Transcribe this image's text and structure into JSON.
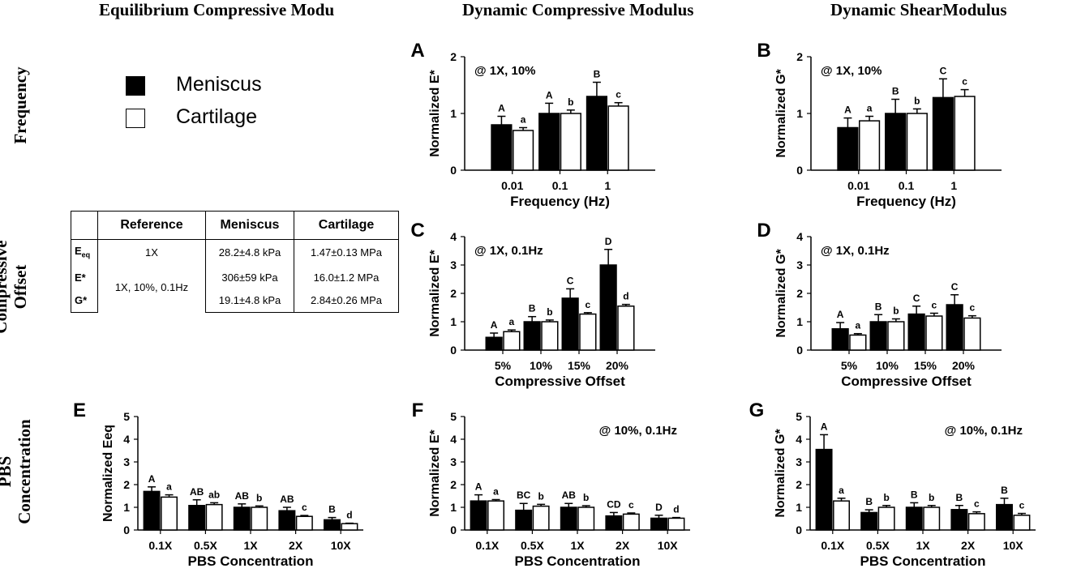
{
  "column_headers": [
    "Equilibrium Compressive Modu",
    "Dynamic Compressive Modulus",
    "Dynamic ShearModulus"
  ],
  "row_headers": {
    "frequency": [
      "Frequency"
    ],
    "offset": [
      "Compressive",
      "Offset"
    ],
    "pbs": [
      "PBS",
      "Concentration"
    ]
  },
  "legend": [
    {
      "label": "Meniscus",
      "color": "#000000"
    },
    {
      "label": "Cartilage",
      "color": "#ffffff"
    }
  ],
  "reference_table": {
    "headers": [
      "",
      "Reference",
      "Meniscus",
      "Cartilage"
    ],
    "row_labels": [
      {
        "main": "E",
        "sub": "eq"
      },
      {
        "main": "E*",
        "sub": ""
      },
      {
        "main": "G*",
        "sub": ""
      }
    ],
    "reference_values": [
      "1X",
      "1X, 10%, 0.1Hz"
    ],
    "meniscus": [
      "28.2±4.8 kPa",
      "306±59 kPa",
      "19.1±4.8 kPa"
    ],
    "cartilage": [
      "1.47±0.13 MPa",
      "16.0±1.2 MPa",
      "2.84±0.26 MPa"
    ]
  },
  "chart_data": [
    {
      "id": "A",
      "type": "bar",
      "condition": "@ 1X, 10%",
      "xlabel": "Frequency (Hz)",
      "ylabel": "Normalized E*",
      "ylim": [
        0,
        2
      ],
      "yticks": [
        0,
        1,
        2
      ],
      "categories": [
        "0.01",
        "0.1",
        "1"
      ],
      "series": [
        {
          "name": "Meniscus",
          "values": [
            0.8,
            1.0,
            1.3
          ],
          "errors": [
            0.15,
            0.18,
            0.25
          ],
          "letters": [
            "A",
            "A",
            "B"
          ]
        },
        {
          "name": "Cartilage",
          "values": [
            0.7,
            1.0,
            1.13
          ],
          "errors": [
            0.05,
            0.06,
            0.06
          ],
          "letters": [
            "a",
            "b",
            "c"
          ]
        }
      ]
    },
    {
      "id": "B",
      "type": "bar",
      "condition": "@ 1X, 10%",
      "xlabel": "Frequency (Hz)",
      "ylabel": "Normalized G*",
      "ylim": [
        0,
        2
      ],
      "yticks": [
        0,
        1,
        2
      ],
      "categories": [
        "0.01",
        "0.1",
        "1"
      ],
      "series": [
        {
          "name": "Meniscus",
          "values": [
            0.75,
            1.0,
            1.28
          ],
          "errors": [
            0.17,
            0.25,
            0.33
          ],
          "letters": [
            "A",
            "B",
            "C"
          ]
        },
        {
          "name": "Cartilage",
          "values": [
            0.87,
            1.0,
            1.3
          ],
          "errors": [
            0.08,
            0.08,
            0.12
          ],
          "letters": [
            "a",
            "b",
            "c"
          ]
        }
      ]
    },
    {
      "id": "C",
      "type": "bar",
      "condition": "@ 1X, 0.1Hz",
      "xlabel": "Compressive Offset",
      "ylabel": "Normalized E*",
      "ylim": [
        0,
        4
      ],
      "yticks": [
        0,
        1,
        2,
        3,
        4
      ],
      "categories": [
        "5%",
        "10%",
        "15%",
        "20%"
      ],
      "series": [
        {
          "name": "Meniscus",
          "values": [
            0.45,
            1.0,
            1.83,
            3.0
          ],
          "errors": [
            0.15,
            0.18,
            0.33,
            0.55
          ],
          "letters": [
            "A",
            "B",
            "C",
            "D"
          ]
        },
        {
          "name": "Cartilage",
          "values": [
            0.65,
            1.0,
            1.27,
            1.55
          ],
          "errors": [
            0.06,
            0.06,
            0.05,
            0.06
          ],
          "letters": [
            "a",
            "b",
            "c",
            "d"
          ]
        }
      ]
    },
    {
      "id": "D",
      "type": "bar",
      "condition": "@ 1X, 0.1Hz",
      "xlabel": "Compressive Offset",
      "ylabel": "Normalized G*",
      "ylim": [
        0,
        4
      ],
      "yticks": [
        0,
        1,
        2,
        3,
        4
      ],
      "categories": [
        "5%",
        "10%",
        "15%",
        "20%"
      ],
      "series": [
        {
          "name": "Meniscus",
          "values": [
            0.75,
            1.0,
            1.27,
            1.6
          ],
          "errors": [
            0.22,
            0.25,
            0.28,
            0.35
          ],
          "letters": [
            "A",
            "B",
            "C",
            "C"
          ]
        },
        {
          "name": "Cartilage",
          "values": [
            0.53,
            1.0,
            1.2,
            1.13
          ],
          "errors": [
            0.05,
            0.1,
            0.1,
            0.08
          ],
          "letters": [
            "a",
            "b",
            "c",
            "c"
          ]
        }
      ]
    },
    {
      "id": "E",
      "type": "bar",
      "condition": "",
      "xlabel": "PBS Concentration",
      "ylabel": "Normalized Eeq",
      "ylim": [
        0,
        5
      ],
      "yticks": [
        0,
        1,
        2,
        3,
        4,
        5
      ],
      "categories": [
        "0.1X",
        "0.5X",
        "1X",
        "2X",
        "10X"
      ],
      "series": [
        {
          "name": "Meniscus",
          "values": [
            1.7,
            1.08,
            1.0,
            0.85,
            0.45
          ],
          "errors": [
            0.2,
            0.25,
            0.15,
            0.15,
            0.1
          ],
          "letters": [
            "A",
            "AB",
            "AB",
            "AB",
            "B"
          ]
        },
        {
          "name": "Cartilage",
          "values": [
            1.45,
            1.12,
            1.0,
            0.6,
            0.28
          ],
          "errors": [
            0.1,
            0.08,
            0.06,
            0.04,
            0.02
          ],
          "letters": [
            "a",
            "ab",
            "b",
            "c",
            "d"
          ]
        }
      ]
    },
    {
      "id": "F",
      "type": "bar",
      "condition": "@ 10%, 0.1Hz",
      "xlabel": "PBS Concentration",
      "ylabel": "Normalized E*",
      "ylim": [
        0,
        5
      ],
      "yticks": [
        0,
        1,
        2,
        3,
        4,
        5
      ],
      "categories": [
        "0.1X",
        "0.5X",
        "1X",
        "2X",
        "10X"
      ],
      "series": [
        {
          "name": "Meniscus",
          "values": [
            1.28,
            0.87,
            1.0,
            0.62,
            0.52
          ],
          "errors": [
            0.27,
            0.3,
            0.17,
            0.15,
            0.13
          ],
          "letters": [
            "A",
            "BC",
            "AB",
            "CD",
            "D"
          ]
        },
        {
          "name": "Cartilage",
          "values": [
            1.28,
            1.05,
            1.0,
            0.7,
            0.52
          ],
          "errors": [
            0.06,
            0.08,
            0.07,
            0.05,
            0.03
          ],
          "letters": [
            "a",
            "b",
            "b",
            "c",
            "d"
          ]
        }
      ]
    },
    {
      "id": "G",
      "type": "bar",
      "condition": "@ 10%, 0.1Hz",
      "xlabel": "PBS Concentration",
      "ylabel": "Normalized G*",
      "ylim": [
        0,
        5
      ],
      "yticks": [
        0,
        1,
        2,
        3,
        4,
        5
      ],
      "categories": [
        "0.1X",
        "0.5X",
        "1X",
        "2X",
        "10X"
      ],
      "series": [
        {
          "name": "Meniscus",
          "values": [
            3.55,
            0.77,
            1.0,
            0.9,
            1.12
          ],
          "errors": [
            0.65,
            0.12,
            0.2,
            0.18,
            0.28
          ],
          "letters": [
            "A",
            "B",
            "B",
            "B",
            "B"
          ]
        },
        {
          "name": "Cartilage",
          "values": [
            1.28,
            1.0,
            1.0,
            0.72,
            0.65
          ],
          "errors": [
            0.12,
            0.08,
            0.08,
            0.08,
            0.08
          ],
          "letters": [
            "a",
            "b",
            "b",
            "c",
            "c"
          ]
        }
      ]
    }
  ]
}
